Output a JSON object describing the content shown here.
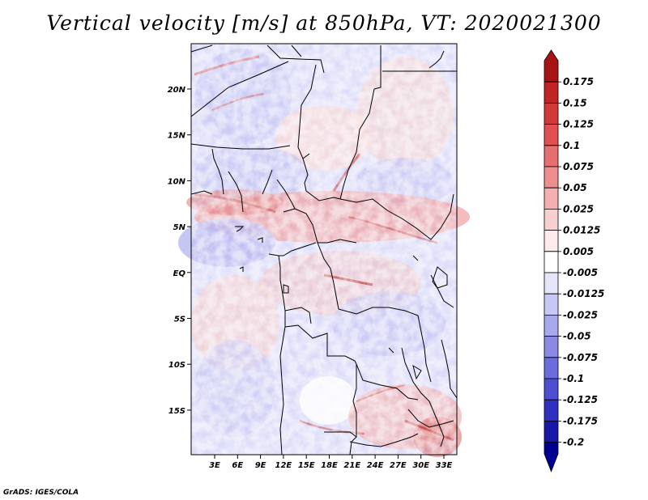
{
  "title": "Vertical velocity [m/s] at 850hPa, VT: 2020021300",
  "credit": "GrADS: IGES/COLA",
  "map": {
    "lon_labels": [
      "3E",
      "6E",
      "9E",
      "12E",
      "15E",
      "18E",
      "21E",
      "24E",
      "27E",
      "30E",
      "33E"
    ],
    "lat_labels": [
      "20N",
      "15N",
      "10N",
      "5N",
      "EQ",
      "5S",
      "10S",
      "15S"
    ]
  },
  "colorbar": {
    "levels": [
      "0.175",
      "0.15",
      "0.125",
      "0.1",
      "0.075",
      "0.05",
      "0.025",
      "0.0125",
      "0.005",
      "-0.005",
      "-0.0125",
      "-0.025",
      "-0.05",
      "-0.075",
      "-0.1",
      "-0.125",
      "-0.175",
      "-0.2"
    ],
    "colors": [
      "#a81414",
      "#c02424",
      "#d23a3a",
      "#e05050",
      "#e66e6e",
      "#ee8e8e",
      "#f4b0b0",
      "#f9d0d0",
      "#fdeaea",
      "#ffffff",
      "#e4e4fa",
      "#c8c8f4",
      "#a8a8ec",
      "#8a8ae4",
      "#6c6cdc",
      "#4e4ed2",
      "#3030c0",
      "#1818a8",
      "#000090"
    ]
  }
}
